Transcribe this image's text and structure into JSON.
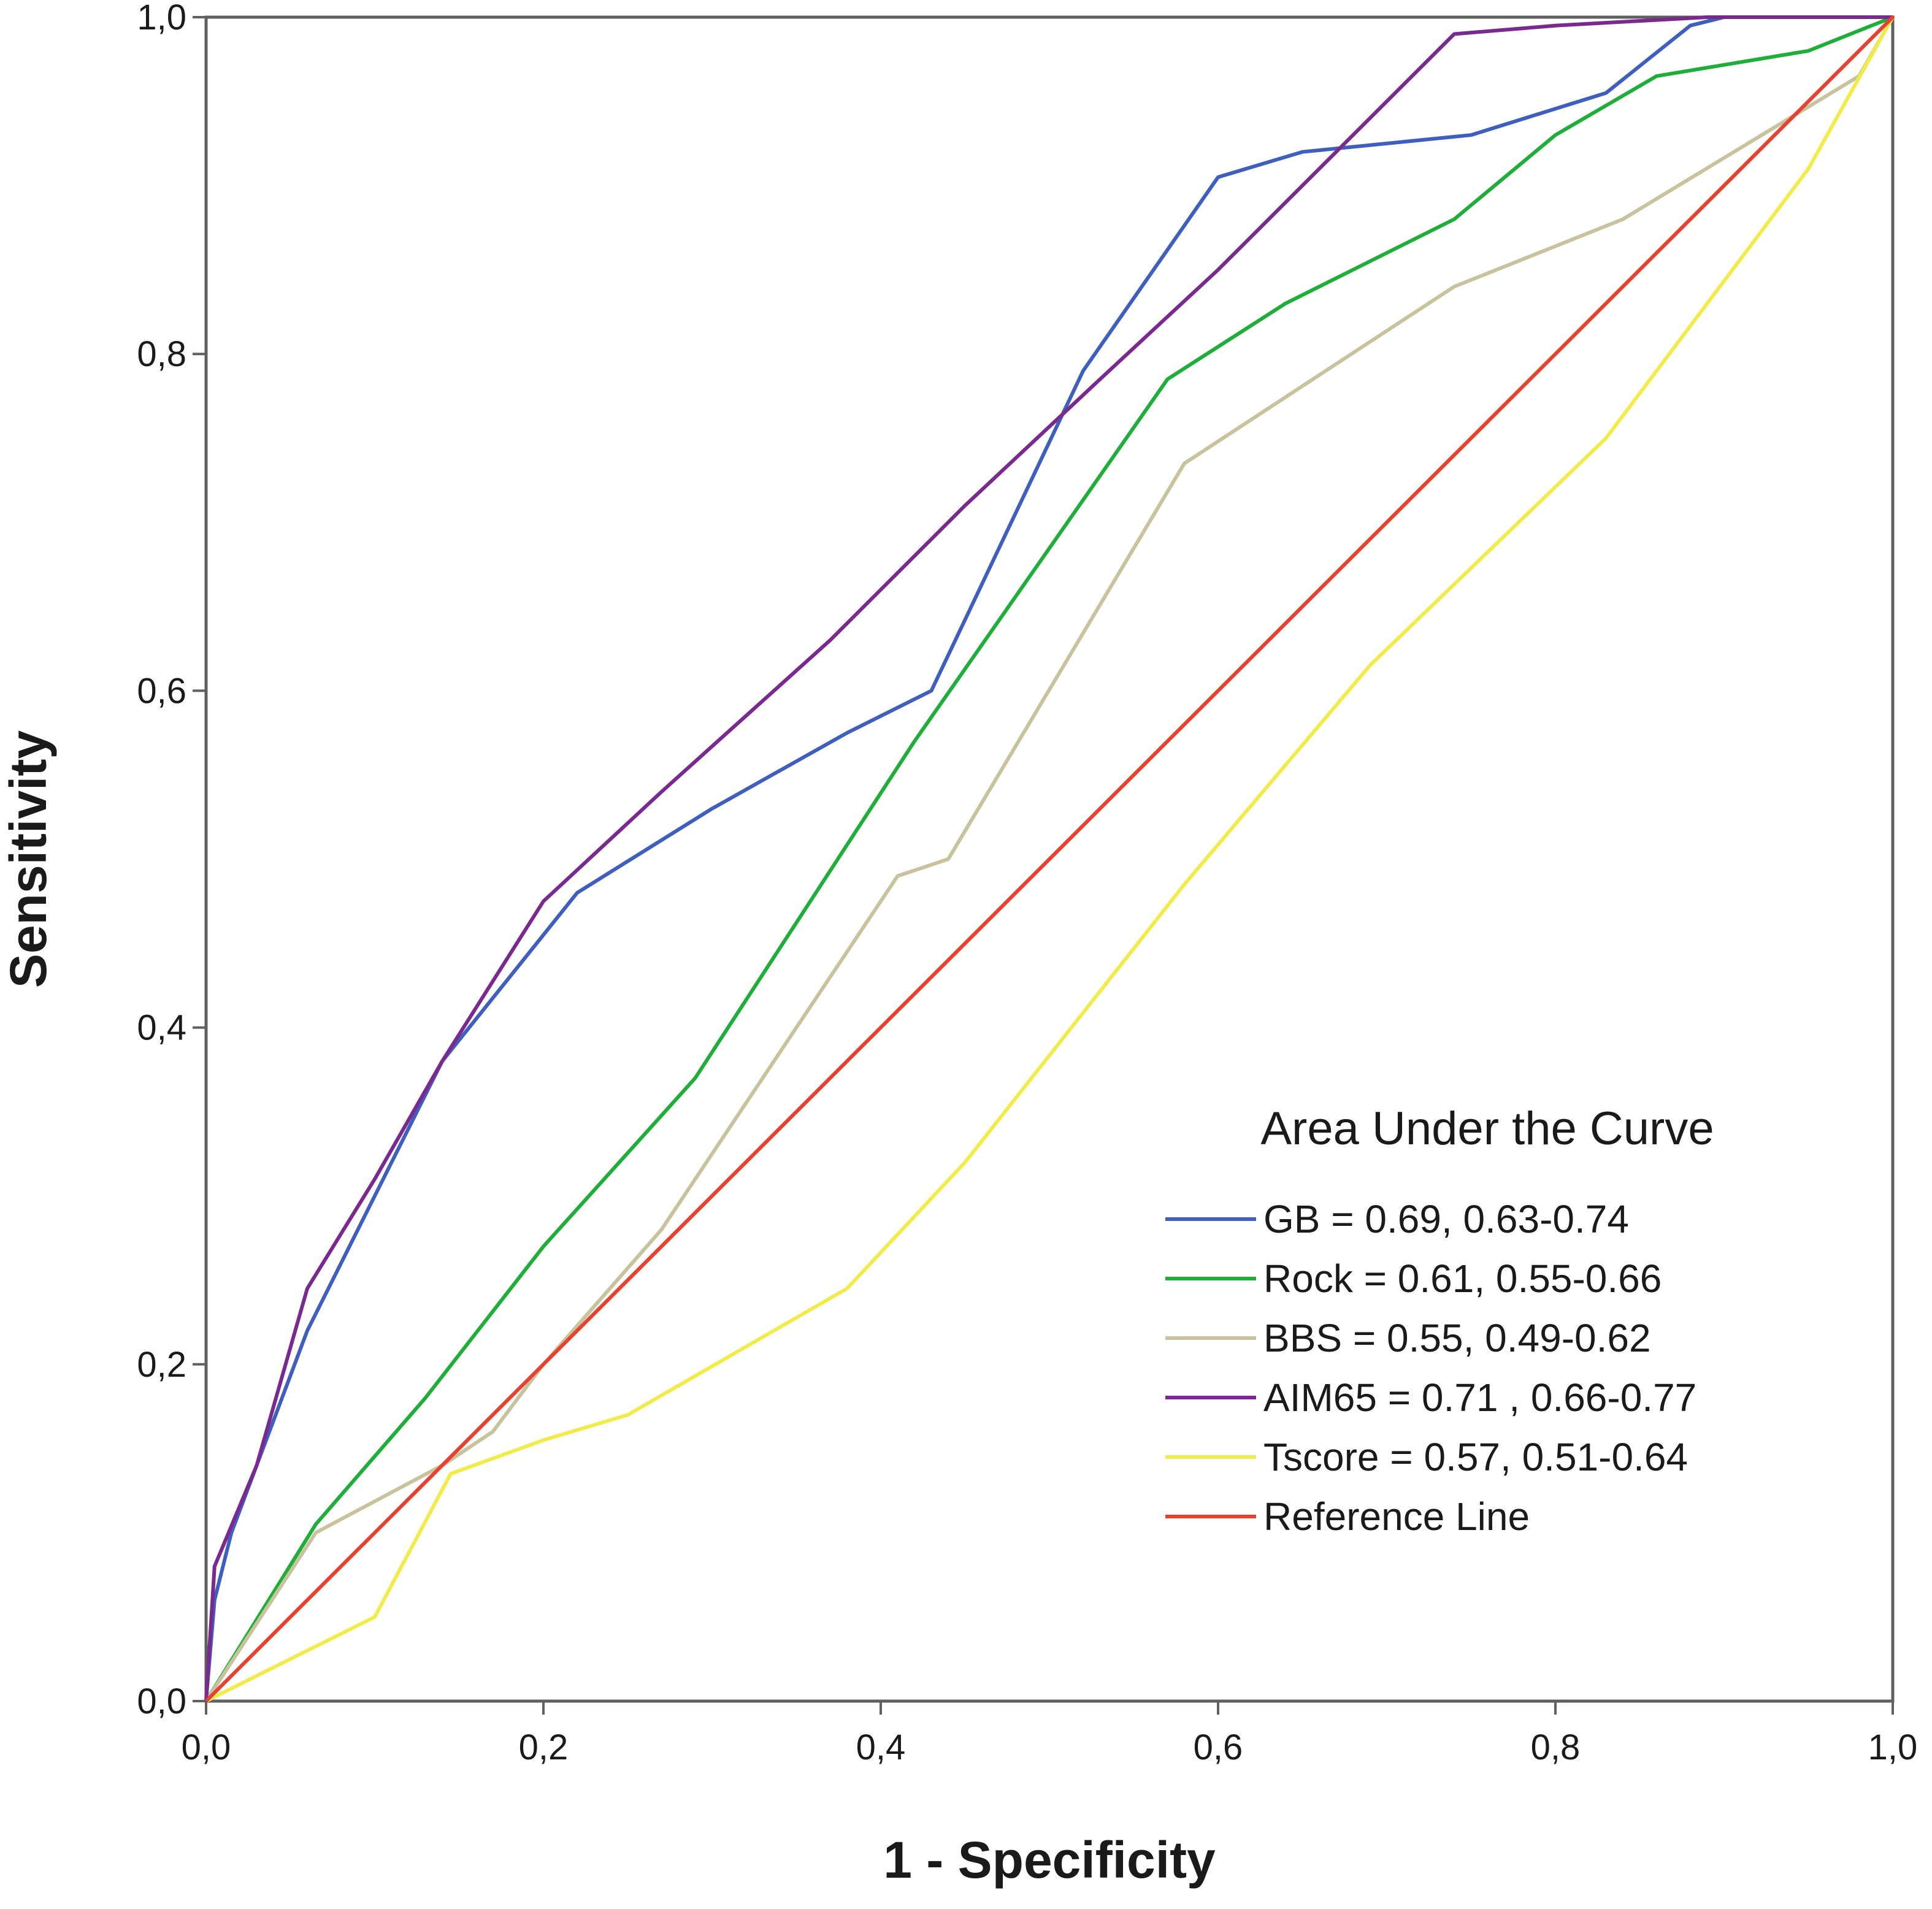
{
  "chart_data": {
    "type": "line",
    "title": "",
    "xlabel": "1 - Specificity",
    "ylabel": "Sensitivity",
    "xlim": [
      0,
      1
    ],
    "ylim": [
      0,
      1
    ],
    "x_ticks": [
      0,
      0.2,
      0.4,
      0.6,
      0.8,
      1.0
    ],
    "x_tick_labels": [
      "0,0",
      "0,2",
      "0,4",
      "0,6",
      "0,8",
      "1,0"
    ],
    "y_ticks": [
      0,
      0.2,
      0.4,
      0.6,
      0.8,
      1.0
    ],
    "y_tick_labels": [
      "0,0",
      "0,2",
      "0,4",
      "0,6",
      "0,8",
      "1,0"
    ],
    "grid": false,
    "legend": {
      "title": "Area Under the Curve",
      "placement": "bottom-right"
    },
    "series": [
      {
        "name": "GB = 0.69, 0.63-0.74",
        "color": "#3f5fbf",
        "points": [
          [
            0,
            0
          ],
          [
            0.005,
            0.06
          ],
          [
            0.015,
            0.1
          ],
          [
            0.06,
            0.22
          ],
          [
            0.1,
            0.3
          ],
          [
            0.14,
            0.38
          ],
          [
            0.22,
            0.48
          ],
          [
            0.3,
            0.53
          ],
          [
            0.38,
            0.575
          ],
          [
            0.43,
            0.6
          ],
          [
            0.52,
            0.79
          ],
          [
            0.6,
            0.905
          ],
          [
            0.65,
            0.92
          ],
          [
            0.75,
            0.93
          ],
          [
            0.83,
            0.955
          ],
          [
            0.88,
            0.995
          ],
          [
            0.9,
            1.0
          ],
          [
            1.0,
            1.0
          ]
        ]
      },
      {
        "name": "Rock = 0.61, 0.55-0.66",
        "color": "#1fae3a",
        "points": [
          [
            0,
            0
          ],
          [
            0.065,
            0.105
          ],
          [
            0.13,
            0.18
          ],
          [
            0.2,
            0.27
          ],
          [
            0.29,
            0.37
          ],
          [
            0.42,
            0.57
          ],
          [
            0.57,
            0.785
          ],
          [
            0.64,
            0.83
          ],
          [
            0.74,
            0.88
          ],
          [
            0.8,
            0.93
          ],
          [
            0.86,
            0.965
          ],
          [
            0.95,
            0.98
          ],
          [
            1.0,
            1.0
          ]
        ]
      },
      {
        "name": "BBS = 0.55, 0.49-0.62",
        "color": "#c8c39c",
        "points": [
          [
            0,
            0
          ],
          [
            0.065,
            0.1
          ],
          [
            0.14,
            0.14
          ],
          [
            0.17,
            0.16
          ],
          [
            0.2,
            0.2
          ],
          [
            0.27,
            0.28
          ],
          [
            0.35,
            0.4
          ],
          [
            0.41,
            0.49
          ],
          [
            0.44,
            0.5
          ],
          [
            0.58,
            0.735
          ],
          [
            0.74,
            0.84
          ],
          [
            0.84,
            0.88
          ],
          [
            0.98,
            0.965
          ],
          [
            1.0,
            1.0
          ]
        ]
      },
      {
        "name": "AIM65 = 0.71 , 0.66-0.77",
        "color": "#7a2a8f",
        "points": [
          [
            0,
            0
          ],
          [
            0.005,
            0.08
          ],
          [
            0.03,
            0.14
          ],
          [
            0.06,
            0.245
          ],
          [
            0.1,
            0.31
          ],
          [
            0.14,
            0.38
          ],
          [
            0.2,
            0.475
          ],
          [
            0.27,
            0.54
          ],
          [
            0.37,
            0.63
          ],
          [
            0.45,
            0.71
          ],
          [
            0.53,
            0.785
          ],
          [
            0.6,
            0.85
          ],
          [
            0.74,
            0.99
          ],
          [
            0.8,
            0.995
          ],
          [
            0.89,
            1.0
          ],
          [
            1.0,
            1.0
          ]
        ]
      },
      {
        "name": "Tscore = 0.57, 0.51-0.64",
        "color": "#f2ec4a",
        "points": [
          [
            0,
            0
          ],
          [
            0.05,
            0.025
          ],
          [
            0.1,
            0.05
          ],
          [
            0.145,
            0.135
          ],
          [
            0.2,
            0.155
          ],
          [
            0.25,
            0.17
          ],
          [
            0.38,
            0.245
          ],
          [
            0.45,
            0.32
          ],
          [
            0.58,
            0.485
          ],
          [
            0.69,
            0.615
          ],
          [
            0.83,
            0.75
          ],
          [
            0.95,
            0.91
          ],
          [
            1.0,
            1.0
          ]
        ]
      },
      {
        "name": "Reference Line",
        "color": "#e8412f",
        "points": [
          [
            0,
            0
          ],
          [
            1,
            1
          ]
        ]
      }
    ]
  }
}
